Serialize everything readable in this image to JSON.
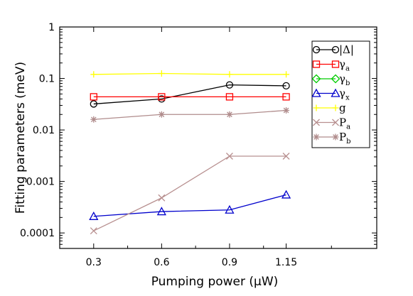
{
  "chart_data": {
    "type": "line",
    "xlabel": "Pumping power (µW)",
    "ylabel": "Fitting parameters (meV)",
    "yscale": "log",
    "xlim": [
      0.15,
      1.55
    ],
    "ylim": [
      5e-05,
      1
    ],
    "x_ticks": [
      0.3,
      0.6,
      0.9,
      1.15
    ],
    "x_tick_labels": [
      "0.3",
      "0.6",
      "0.9",
      "1.15"
    ],
    "y_ticks": [
      0.0001,
      0.001,
      0.01,
      0.1,
      1
    ],
    "y_tick_labels": [
      "0.0001",
      "0.001",
      "0.01",
      "0.1",
      "1"
    ],
    "legend_position": "top-right",
    "grid": false,
    "series": [
      {
        "label": "|Δ|",
        "sub": "",
        "color": "#000000",
        "marker": "circle",
        "x": [
          0.3,
          0.6,
          0.9,
          1.15
        ],
        "values": [
          0.032,
          0.04,
          0.075,
          0.072
        ]
      },
      {
        "label": "γ",
        "sub": "a",
        "color": "#ff0000",
        "marker": "square",
        "x": [
          0.3,
          0.6,
          0.9,
          1.15
        ],
        "values": [
          0.044,
          0.044,
          0.044,
          0.044
        ]
      },
      {
        "label": "γ",
        "sub": "b",
        "color": "#00cc00",
        "marker": "diamond",
        "x": [],
        "values": []
      },
      {
        "label": "γ",
        "sub": "x",
        "color": "#0000cc",
        "marker": "triangle",
        "x": [
          0.3,
          0.6,
          0.9,
          1.15
        ],
        "values": [
          0.00021,
          0.00026,
          0.00028,
          0.00055
        ]
      },
      {
        "label": "g",
        "sub": "",
        "color": "#ffff00",
        "marker": "plus",
        "x": [
          0.3,
          0.6,
          0.9,
          1.15
        ],
        "values": [
          0.12,
          0.125,
          0.12,
          0.12
        ]
      },
      {
        "label": "P",
        "sub": "a",
        "color": "#b89090",
        "marker": "x",
        "x": [
          0.3,
          0.6,
          0.9,
          1.15
        ],
        "values": [
          0.00011,
          0.00048,
          0.0031,
          0.0031
        ]
      },
      {
        "label": "P",
        "sub": "b",
        "color": "#b08c8c",
        "marker": "star",
        "x": [
          0.3,
          0.6,
          0.9,
          1.15
        ],
        "values": [
          0.016,
          0.02,
          0.02,
          0.024
        ]
      }
    ]
  }
}
